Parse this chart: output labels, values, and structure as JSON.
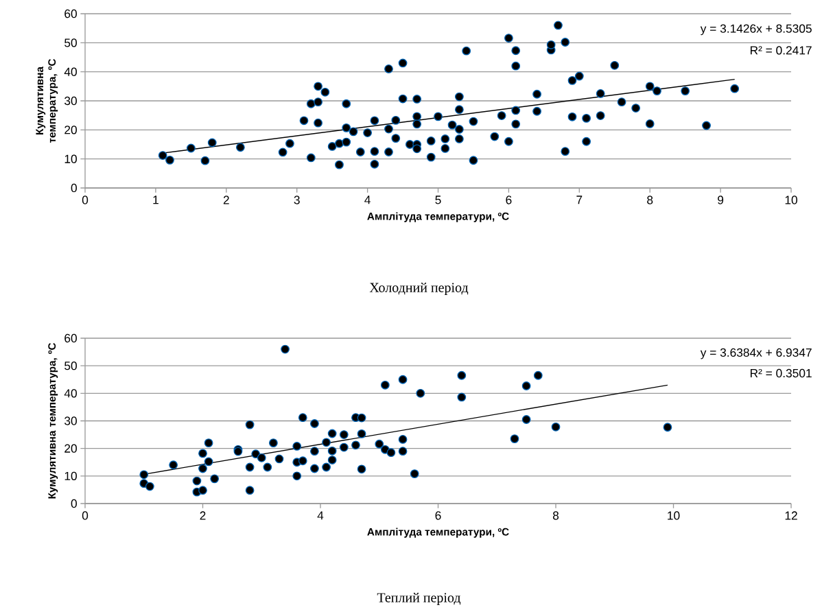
{
  "chart_data": [
    {
      "type": "scatter",
      "title": "Холодний період",
      "xlabel": "Амплітуда температури, ºC",
      "ylabel": "Кумулятивна температура, ºC",
      "xlim": [
        0,
        10
      ],
      "xticks": [
        0,
        1,
        2,
        3,
        4,
        5,
        6,
        7,
        8,
        9,
        10
      ],
      "ylim": [
        0,
        60
      ],
      "yticks": [
        0,
        10,
        20,
        30,
        40,
        50,
        60
      ],
      "grid": "y",
      "annotations": [
        "y = 3.1426x + 8.5305",
        "R² = 0.2417"
      ],
      "series": [
        {
          "type": "scatter",
          "marker": "circle",
          "color": "#000000",
          "x": [
            1.1,
            1.2,
            1.5,
            1.7,
            1.8,
            2.2,
            2.8,
            2.9,
            3.1,
            3.2,
            3.2,
            3.3,
            3.3,
            3.3,
            3.4,
            3.5,
            3.6,
            3.6,
            3.7,
            3.7,
            3.7,
            3.8,
            3.9,
            4.0,
            4.1,
            4.1,
            4.1,
            4.3,
            4.3,
            4.3,
            4.4,
            4.4,
            4.5,
            4.5,
            4.6,
            4.7,
            4.7,
            4.7,
            4.7,
            4.7,
            4.9,
            4.9,
            5.0,
            5.1,
            5.1,
            5.2,
            5.3,
            5.3,
            5.3,
            5.3,
            5.4,
            5.5,
            5.5,
            5.8,
            5.9,
            6.0,
            6.0,
            6.1,
            6.1,
            6.1,
            6.1,
            6.4,
            6.4,
            6.6,
            6.6,
            6.7,
            6.8,
            6.8,
            6.9,
            6.9,
            7.0,
            7.1,
            7.1,
            7.3,
            7.3,
            7.5,
            7.6,
            7.8,
            8.0,
            8.0,
            8.1,
            8.5,
            8.8,
            9.2
          ],
          "values": [
            11.2,
            9.6,
            13.7,
            9.4,
            15.6,
            14,
            12.3,
            15.3,
            23.2,
            29,
            10.4,
            35,
            29.6,
            22.4,
            33,
            14.3,
            15.3,
            8,
            29,
            20.7,
            15.8,
            19.4,
            12.4,
            19,
            23.2,
            12.6,
            8.2,
            41,
            20.3,
            12.4,
            23.3,
            17.1,
            43,
            30.7,
            15,
            30.6,
            24.6,
            22,
            15,
            13.5,
            16.2,
            10.6,
            24.6,
            16.9,
            13.6,
            21.7,
            31.4,
            27,
            20.2,
            16.9,
            47.2,
            22.9,
            9.5,
            17.7,
            24.9,
            51.6,
            16,
            47.3,
            42,
            26.7,
            22,
            32.3,
            26.4,
            47.5,
            49.3,
            56,
            50.2,
            12.6,
            37,
            24.5,
            38.5,
            24,
            16,
            32.5,
            24.9,
            42.2,
            29.6,
            27.5,
            35,
            22.1,
            33.4,
            33.4,
            21.5,
            34.2
          ]
        },
        {
          "type": "line",
          "color": "#000000",
          "marker": "none",
          "x": [
            1.1,
            9.2
          ],
          "values": [
            12.0,
            37.4
          ]
        }
      ]
    },
    {
      "type": "scatter",
      "title": "Теплий період",
      "xlabel": "Амплітуда температури, ºC",
      "ylabel": "Кумулятивна температура, ºC",
      "xlim": [
        0,
        12
      ],
      "xticks": [
        0,
        2,
        4,
        6,
        8,
        10,
        12
      ],
      "ylim": [
        0,
        60
      ],
      "yticks": [
        0,
        10,
        20,
        30,
        40,
        50,
        60
      ],
      "grid": "y",
      "annotations": [
        "y = 3.6384x + 6.9347",
        "R² = 0.3501"
      ],
      "series": [
        {
          "type": "scatter",
          "marker": "circle",
          "color": "#000000",
          "x": [
            1.0,
            1.0,
            1.1,
            1.5,
            1.9,
            1.9,
            2.0,
            2.0,
            2.0,
            2.1,
            2.1,
            2.2,
            2.6,
            2.6,
            2.8,
            2.8,
            2.8,
            2.9,
            3.0,
            3.1,
            3.2,
            3.3,
            3.4,
            3.6,
            3.6,
            3.6,
            3.7,
            3.7,
            3.9,
            3.9,
            3.9,
            4.1,
            4.1,
            4.2,
            4.2,
            4.2,
            4.4,
            4.4,
            4.6,
            4.6,
            4.7,
            4.7,
            4.7,
            5.0,
            5.1,
            5.1,
            5.2,
            5.4,
            5.4,
            5.4,
            5.6,
            5.7,
            6.4,
            6.4,
            7.3,
            7.5,
            7.5,
            7.7,
            8.0,
            9.9
          ],
          "values": [
            10.5,
            7.3,
            6.2,
            14,
            8.2,
            4.2,
            18.2,
            12.7,
            4.8,
            22,
            15.2,
            9,
            19.6,
            18.9,
            28.6,
            13.2,
            4.8,
            18,
            16.6,
            13.2,
            22,
            16.2,
            56,
            20.8,
            15,
            10,
            31.2,
            15.5,
            29,
            19,
            12.7,
            22.2,
            13.2,
            25.4,
            19.1,
            15.8,
            25,
            20.4,
            31.2,
            21.2,
            31.1,
            25.3,
            12.5,
            21.6,
            43,
            19.6,
            18.5,
            45,
            23.3,
            19,
            10.8,
            40,
            46.5,
            38.6,
            23.5,
            42.7,
            30.5,
            46.5,
            27.8,
            27.7
          ]
        },
        {
          "type": "line",
          "color": "#000000",
          "marker": "none",
          "x": [
            1.0,
            9.9
          ],
          "values": [
            10.6,
            43.0
          ]
        }
      ]
    }
  ]
}
